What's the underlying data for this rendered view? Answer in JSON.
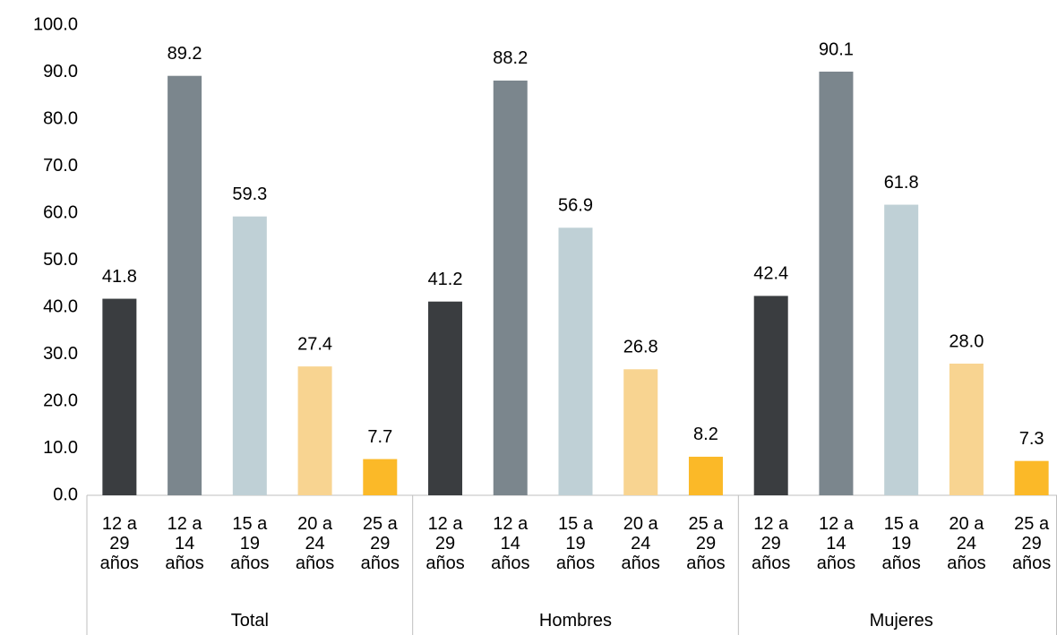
{
  "chart_data": {
    "type": "bar",
    "categories": [
      "Total",
      "Hombres",
      "Mujeres"
    ],
    "series": [
      {
        "name": "12 a 29 años",
        "color": "#3a3d40",
        "values": [
          41.8,
          41.2,
          42.4
        ],
        "value_labels": [
          "41.8",
          "41.2",
          "42.4"
        ]
      },
      {
        "name": "12 a 14 años",
        "color": "#7b868d",
        "values": [
          89.2,
          88.2,
          90.1
        ],
        "value_labels": [
          "89.2",
          "88.2",
          "90.1"
        ]
      },
      {
        "name": "15 a 19 años",
        "color": "#bfd0d6",
        "values": [
          59.3,
          56.9,
          61.8
        ],
        "value_labels": [
          "59.3",
          "56.9",
          "61.8"
        ]
      },
      {
        "name": "20 a 24 años",
        "color": "#f8d491",
        "values": [
          27.4,
          26.8,
          28.0
        ],
        "value_labels": [
          "27.4",
          "26.8",
          "28.0"
        ]
      },
      {
        "name": "25 a 29 años",
        "color": "#fbb928",
        "values": [
          7.7,
          8.2,
          7.3
        ],
        "value_labels": [
          "7.7",
          "8.2",
          "7.3"
        ]
      }
    ],
    "ylim": [
      0,
      100
    ],
    "yticks": [
      {
        "value": 0,
        "label": "0.0"
      },
      {
        "value": 10,
        "label": "10.0"
      },
      {
        "value": 20,
        "label": "20.0"
      },
      {
        "value": 30,
        "label": "30.0"
      },
      {
        "value": 40,
        "label": "40.0"
      },
      {
        "value": 50,
        "label": "50.0"
      },
      {
        "value": 60,
        "label": "60.0"
      },
      {
        "value": 70,
        "label": "70.0"
      },
      {
        "value": 80,
        "label": "80.0"
      },
      {
        "value": 90,
        "label": "90.0"
      },
      {
        "value": 100,
        "label": "100.0"
      }
    ],
    "grid": false
  }
}
